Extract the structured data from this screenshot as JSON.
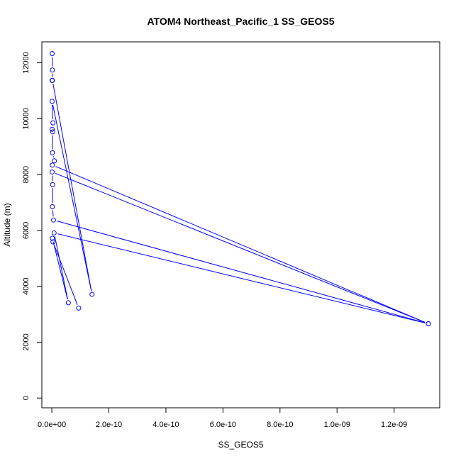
{
  "chart_data": {
    "type": "scatter",
    "title": "ATOM4 Northeast_Pacific_1 SS_GEOS5",
    "xlabel": "SS_GEOS5",
    "ylabel": "Altitude (m)",
    "xlim": [
      -3.5e-11,
      1.36e-09
    ],
    "ylim": [
      -350,
      12750
    ],
    "x_ticks": [
      0,
      2e-10,
      4e-10,
      6e-10,
      8e-10,
      1e-09,
      1.2e-09
    ],
    "x_tick_labels": [
      "0.0e+00",
      "2.0e-10",
      "4.0e-10",
      "6.0e-10",
      "8.0e-10",
      "1.0e-09",
      "1.2e-09"
    ],
    "y_ticks": [
      0,
      2000,
      4000,
      6000,
      8000,
      10000,
      12000
    ],
    "y_tick_labels": [
      "0",
      "2000",
      "4000",
      "6000",
      "8000",
      "10000",
      "12000"
    ],
    "grid": false,
    "line_color": "#0000ff",
    "series": [
      {
        "points": [
          {
            "x": 1e-12,
            "y": 12330
          },
          {
            "x": 2e-12,
            "y": 11740
          },
          {
            "x": 1e-12,
            "y": 11370
          },
          {
            "x": 2e-12,
            "y": 11370
          },
          {
            "x": 1.41e-10,
            "y": 3710
          },
          {
            "x": 1e-12,
            "y": 10620
          },
          {
            "x": 4e-12,
            "y": 9850
          },
          {
            "x": 1e-12,
            "y": 9620
          },
          {
            "x": 3e-12,
            "y": 9530
          },
          {
            "x": 2e-12,
            "y": 8780
          },
          {
            "x": 9e-12,
            "y": 8490
          },
          {
            "x": 2e-12,
            "y": 8340
          },
          {
            "x": 1.32e-09,
            "y": 2660
          },
          {
            "x": 1e-12,
            "y": 8090
          },
          {
            "x": 3e-12,
            "y": 7640
          },
          {
            "x": 2e-12,
            "y": 6850
          },
          {
            "x": 6e-12,
            "y": 6370
          },
          {
            "x": 1.32e-09,
            "y": 2660
          },
          {
            "x": 8e-12,
            "y": 5910
          },
          {
            "x": 5.8e-11,
            "y": 3410
          },
          {
            "x": 2e-12,
            "y": 5720
          },
          {
            "x": 4e-12,
            "y": 5590
          },
          {
            "x": 9.4e-11,
            "y": 3220
          }
        ]
      }
    ]
  }
}
